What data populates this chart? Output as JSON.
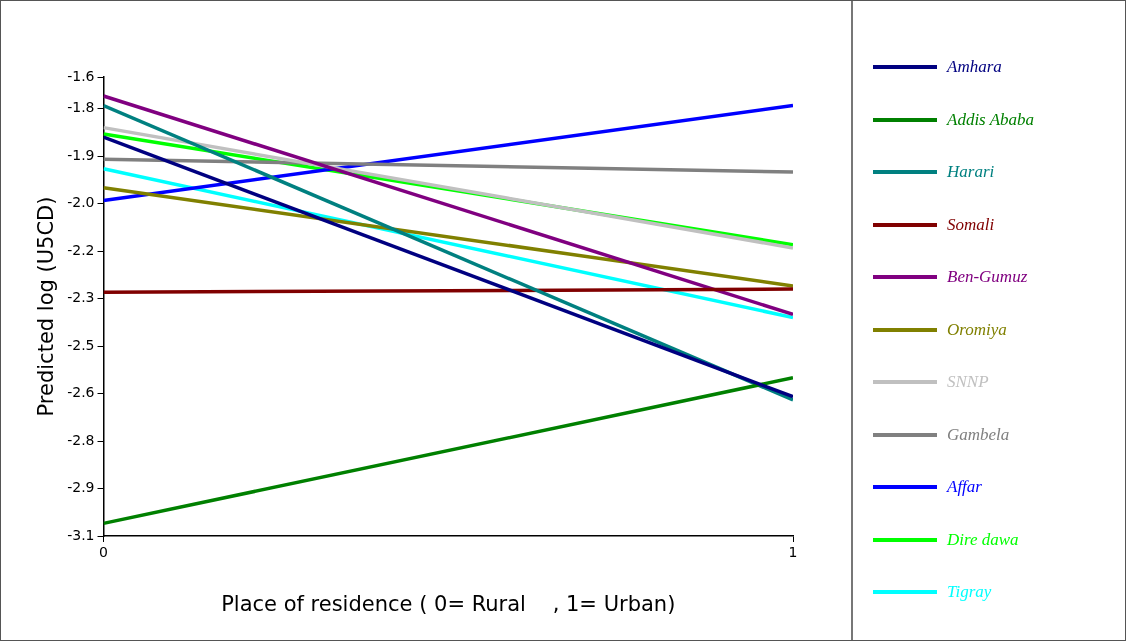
{
  "chart_data": {
    "type": "line",
    "xlabel": "Place of residence ( 0= Rural    , 1= Urban)",
    "ylabel": "Predicted log (U5CD)",
    "x": [
      0,
      1
    ],
    "xlim": [
      0,
      1
    ],
    "xticks": [
      0,
      1
    ],
    "ylim": [
      -3.1,
      -1.65
    ],
    "yticks": [
      {
        "value": -1.65,
        "label": "-1.6"
      },
      {
        "value": -1.75,
        "label": "-1.8"
      },
      {
        "value": -1.9,
        "label": "-1.9"
      },
      {
        "value": -2.05,
        "label": "-2.0"
      },
      {
        "value": -2.2,
        "label": "-2.2"
      },
      {
        "value": -2.35,
        "label": "-2.3"
      },
      {
        "value": -2.5,
        "label": "-2.5"
      },
      {
        "value": -2.65,
        "label": "-2.6"
      },
      {
        "value": -2.8,
        "label": "-2.8"
      },
      {
        "value": -2.95,
        "label": "-2.9"
      },
      {
        "value": -3.1,
        "label": "-3.1"
      }
    ],
    "grid": false,
    "legend": "right",
    "marker": "none",
    "line_style": "solid",
    "series": [
      {
        "name": "Amhara",
        "color": "#000080",
        "values": [
          -1.84,
          -2.66
        ]
      },
      {
        "name": "Addis Ababa",
        "color": "#008000",
        "values": [
          -3.06,
          -2.6
        ]
      },
      {
        "name": "Harari",
        "color": "#008080",
        "values": [
          -1.74,
          -2.67
        ]
      },
      {
        "name": "Somali",
        "color": "#800000",
        "values": [
          -2.33,
          -2.32
        ]
      },
      {
        "name": "Ben-Gumuz",
        "color": "#800080",
        "values": [
          -1.71,
          -2.4
        ]
      },
      {
        "name": "Oromiya",
        "color": "#808000",
        "values": [
          -2.0,
          -2.31
        ]
      },
      {
        "name": "SNNP",
        "color": "#c0c0c0",
        "values": [
          -1.81,
          -2.19
        ]
      },
      {
        "name": "Gambela",
        "color": "#808080",
        "values": [
          -1.91,
          -1.95
        ]
      },
      {
        "name": "Affar",
        "color": "#0000ff",
        "values": [
          -2.04,
          -1.74
        ]
      },
      {
        "name": "Dire dawa",
        "color": "#00ff00",
        "values": [
          -1.83,
          -2.18
        ]
      },
      {
        "name": "Tigray",
        "color": "#00ffff",
        "values": [
          -1.94,
          -2.41
        ]
      }
    ]
  }
}
